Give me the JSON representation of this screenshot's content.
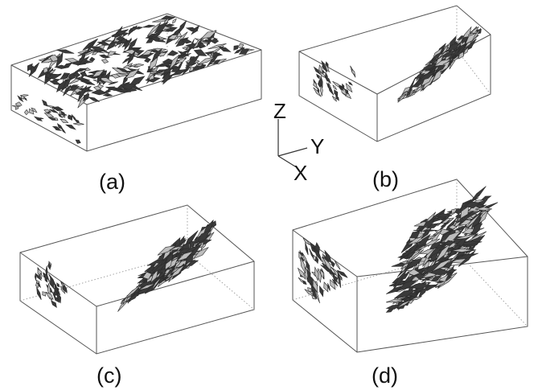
{
  "panels": [
    {
      "id": "a",
      "label": "(a)",
      "description": "dense scattered fracture network"
    },
    {
      "id": "b",
      "label": "(b)",
      "description": "isolated fracture clusters"
    },
    {
      "id": "c",
      "label": "(c)",
      "description": "isolated fracture clusters"
    },
    {
      "id": "d",
      "label": "(d)",
      "description": "large connected fracture cluster"
    }
  ],
  "axes": {
    "z": "Z",
    "y": "Y",
    "x": "X"
  },
  "colors": {
    "box_edge": "#555555",
    "shard_dark": "#3a3a3a",
    "shard_light": "#bdbdbd"
  }
}
